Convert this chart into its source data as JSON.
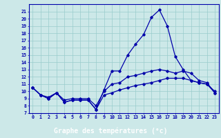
{
  "xlabel": "Graphe des températures (°c)",
  "hours": [
    0,
    1,
    2,
    3,
    4,
    5,
    6,
    7,
    8,
    9,
    10,
    11,
    12,
    13,
    14,
    15,
    16,
    17,
    18,
    19,
    20,
    21,
    22,
    23
  ],
  "temp_main": [
    10.5,
    9.5,
    9.0,
    9.8,
    8.5,
    8.8,
    8.8,
    8.8,
    7.5,
    10.2,
    12.8,
    12.8,
    15.0,
    16.5,
    17.8,
    20.2,
    21.2,
    19.0,
    14.8,
    13.0,
    11.5,
    11.2,
    11.0,
    10.0
  ],
  "temp_min": [
    10.5,
    9.5,
    9.0,
    9.8,
    8.5,
    8.8,
    8.8,
    8.8,
    7.5,
    9.5,
    9.8,
    10.2,
    10.5,
    10.8,
    11.0,
    11.2,
    11.5,
    11.8,
    11.8,
    11.8,
    11.5,
    11.2,
    11.0,
    9.8
  ],
  "temp_avg": [
    10.5,
    9.5,
    9.2,
    9.8,
    8.8,
    9.0,
    9.0,
    9.0,
    8.0,
    10.0,
    11.0,
    11.2,
    12.0,
    12.2,
    12.5,
    12.8,
    13.0,
    12.8,
    12.5,
    12.8,
    12.5,
    11.5,
    11.2,
    9.8
  ],
  "ylim": [
    7,
    22
  ],
  "xlim": [
    -0.5,
    23.5
  ],
  "yticks": [
    7,
    8,
    9,
    10,
    11,
    12,
    13,
    14,
    15,
    16,
    17,
    18,
    19,
    20,
    21
  ],
  "bg_color": "#cce8e8",
  "line_color": "#0000aa",
  "grid_color": "#99cccc",
  "label_color": "#0000aa",
  "xlabel_bg": "#3333aa",
  "xlabel_fg": "#ffffff"
}
